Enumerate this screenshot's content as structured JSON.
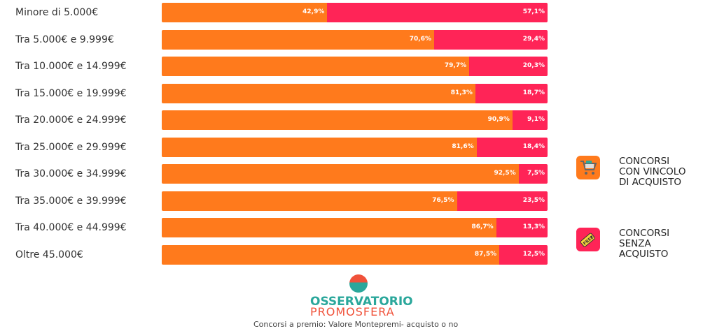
{
  "chart_data": {
    "type": "bar",
    "orientation": "horizontal",
    "stacked": "percent",
    "categories": [
      "Minore di 5.000€",
      "Tra 5.000€ e 9.999€",
      "Tra 10.000€ e 14.999€",
      "Tra 15.000€ e 19.999€",
      "Tra 20.000€ e 24.999€",
      "Tra 25.000€ e 29.999€",
      "Tra 30.000€ e 34.999€",
      "Tra 35.000€ e 39.999€",
      "Tra 40.000€ e 44.999€",
      "Oltre 45.000€"
    ],
    "series": [
      {
        "name": "CONCORSI CON VINCOLO DI ACQUISTO",
        "color": "#ff7a1c",
        "values": [
          42.9,
          70.6,
          79.7,
          81.3,
          90.9,
          81.6,
          92.5,
          76.5,
          86.7,
          87.5
        ],
        "labels": [
          "42,9%",
          "70,6%",
          "79,7%",
          "81,3%",
          "90,9%",
          "81,6%",
          "92,5%",
          "76,5%",
          "86,7%",
          "87,5%"
        ]
      },
      {
        "name": "CONCORSI SENZA ACQUISTO",
        "color": "#ff2457",
        "values": [
          57.1,
          29.4,
          20.3,
          18.7,
          9.1,
          18.4,
          7.5,
          23.5,
          13.3,
          12.5
        ],
        "labels": [
          "57,1%",
          "29,4%",
          "20,3%",
          "18,7%",
          "9,1%",
          "18,4%",
          "7,5%",
          "23,5%",
          "13,3%",
          "12,5%"
        ]
      }
    ],
    "xlim": [
      0,
      100
    ],
    "legend_placement": "right",
    "grid": false
  },
  "legend": [
    {
      "lines": [
        "CONCORSI",
        "CON VINCOLO",
        "DI ACQUISTO"
      ],
      "icon": "shopping-cart-icon"
    },
    {
      "lines": [
        "CONCORSI",
        "SENZA",
        "ACQUISTO"
      ],
      "icon": "free-tag-icon"
    }
  ],
  "logo": {
    "line1": "OSSERVATORIO",
    "line2": "PROMOSFERA"
  },
  "caption": "Concorsi a premio: Valore Montepremi- acquisto o no"
}
